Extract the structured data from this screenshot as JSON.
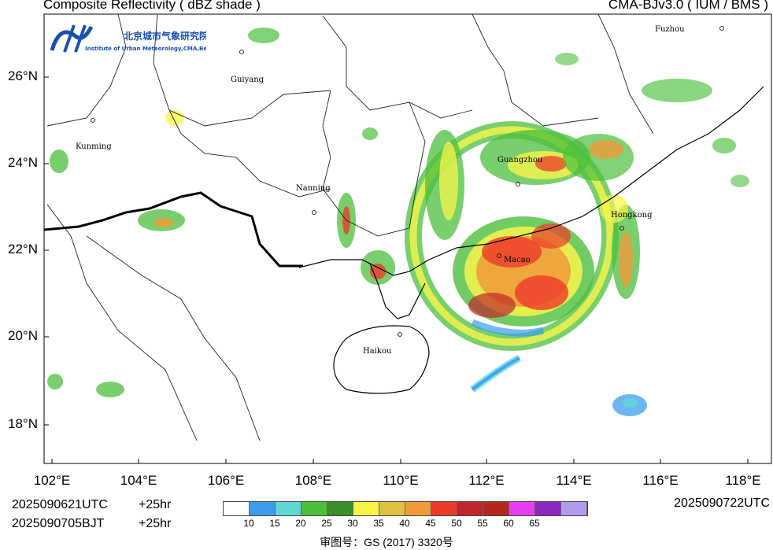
{
  "header": {
    "title": "Composite Reflectivity ( dBZ shade )",
    "model": "CMA-BJv3.0 ( IUM / BMS )"
  },
  "logo": {
    "name_cn": "北京城市气象研究院",
    "name_en": "Institute of Urban Meteorology,CMA,Beijing"
  },
  "axes": {
    "lat_labels": [
      "26°N",
      "24°N",
      "22°N",
      "20°N",
      "18°N"
    ],
    "lon_labels": [
      "102°E",
      "104°E",
      "106°E",
      "108°E",
      "110°E",
      "112°E",
      "114°E",
      "116°E",
      "118°E"
    ]
  },
  "cities": [
    {
      "name": "Fuzhou"
    },
    {
      "name": "Guiyang"
    },
    {
      "name": "Kunming"
    },
    {
      "name": "Nanning"
    },
    {
      "name": "Guangzhou"
    },
    {
      "name": "Hongkong"
    },
    {
      "name": "Macao"
    },
    {
      "name": "Haikou"
    }
  ],
  "footer": {
    "init_utc": "2025090621UTC",
    "lead_utc": "+25hr",
    "init_bjt": "2025090705BJT",
    "lead_bjt": "+25hr",
    "valid_utc": "2025090722UTC",
    "approval": "审图号：GS (2017) 3320号"
  },
  "colorbar": {
    "colors": [
      "#ffffff",
      "#3c9df0",
      "#5fd6d6",
      "#4cbf3c",
      "#3b8e2a",
      "#f7f54a",
      "#e0c040",
      "#f09a3a",
      "#ee3a2a",
      "#c0262a",
      "#b4281e",
      "#e83cf0",
      "#8b26c0",
      "#b39af0"
    ],
    "labels": [
      "10",
      "15",
      "20",
      "25",
      "30",
      "35",
      "40",
      "45",
      "50",
      "55",
      "60",
      "65"
    ]
  }
}
